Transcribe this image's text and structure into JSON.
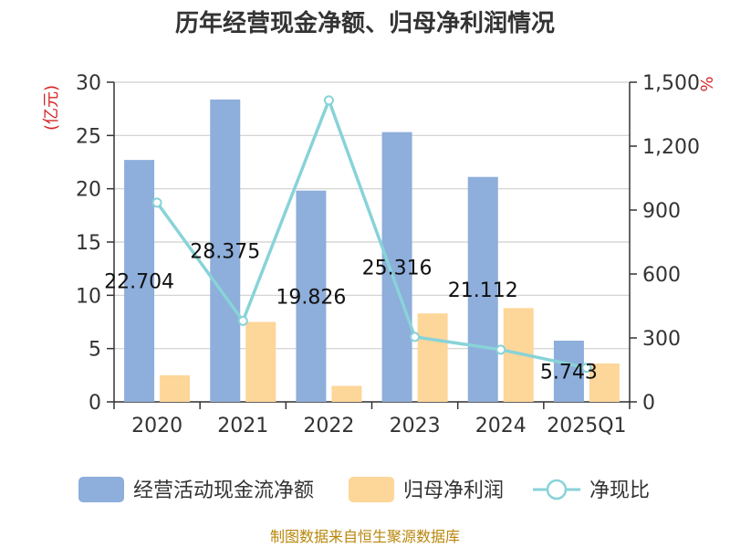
{
  "chart_data": {
    "type": "bar",
    "title": "历年经营现金净额、归母净利润情况",
    "categories": [
      "2020",
      "2021",
      "2022",
      "2023",
      "2024",
      "2025Q1"
    ],
    "y_left": {
      "unit": "(亿元)",
      "ylim": [
        0,
        30
      ],
      "ticks": [
        0,
        5,
        10,
        15,
        20,
        25,
        30
      ]
    },
    "y_right": {
      "unit": "%",
      "ylim": [
        0,
        1500
      ],
      "ticks": [
        0,
        300,
        600,
        900,
        1200,
        1500
      ],
      "tick_labels": [
        "0",
        "300",
        "600",
        "900",
        "1,200",
        "1,500"
      ]
    },
    "series": [
      {
        "name": "经营活动现金流净额",
        "type": "bar",
        "axis": "left",
        "color": "#8eaedb",
        "values": [
          22.704,
          28.375,
          19.826,
          25.316,
          21.112,
          5.743
        ],
        "labels": [
          "22.704",
          "28.375",
          "19.826",
          "25.316",
          "21.112",
          "5.743"
        ]
      },
      {
        "name": "归母净利润",
        "type": "bar",
        "axis": "left",
        "color": "#fdd699",
        "values": [
          2.5,
          7.5,
          1.5,
          8.3,
          8.8,
          3.6
        ]
      },
      {
        "name": "净现比",
        "type": "line",
        "axis": "right",
        "color": "#88d3d8",
        "values": [
          935,
          380,
          1415,
          305,
          245,
          160
        ]
      }
    ],
    "grid": true,
    "legend": "bottom"
  },
  "footer": {
    "source": "制图数据来自恒生聚源数据库"
  }
}
